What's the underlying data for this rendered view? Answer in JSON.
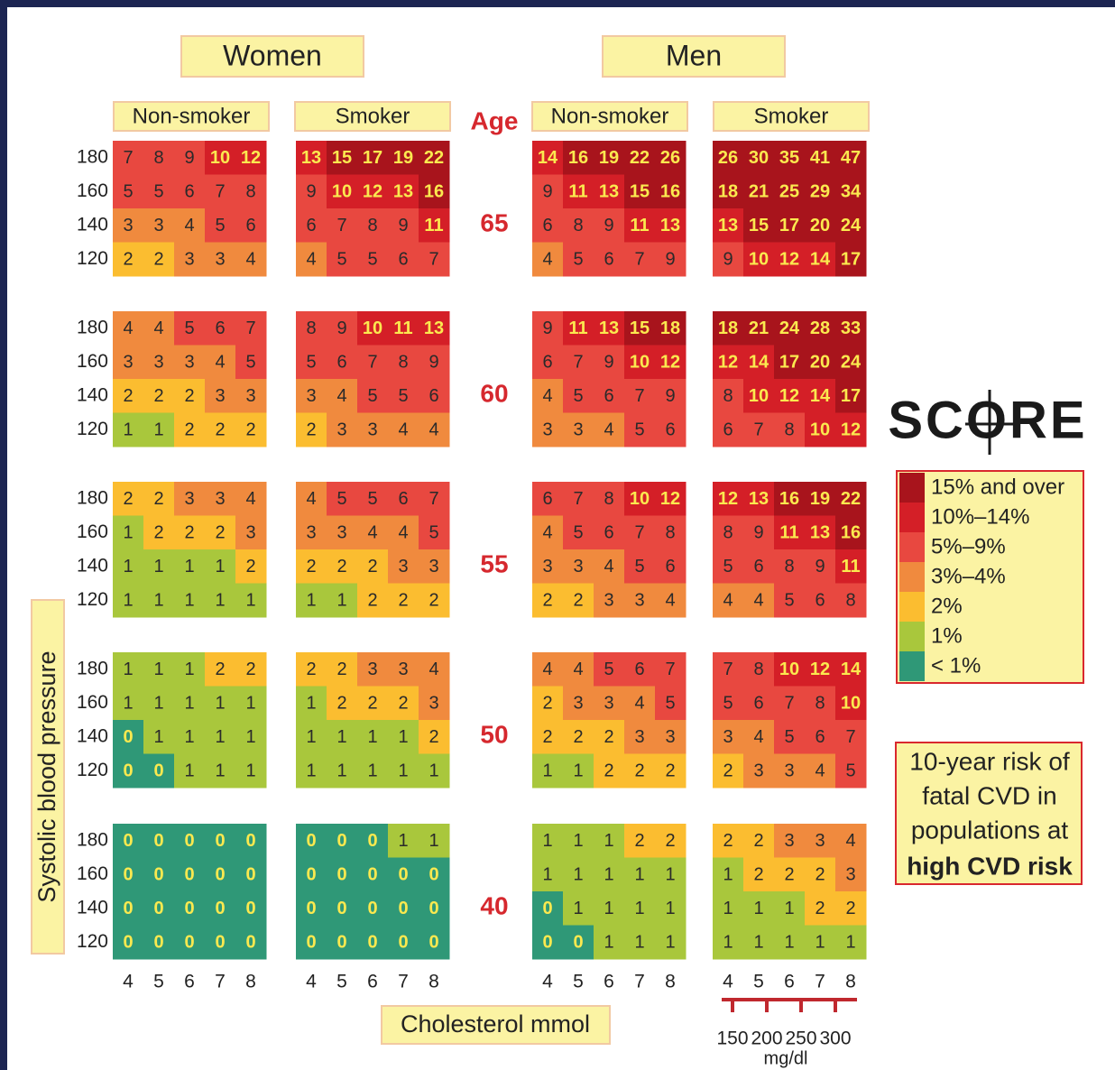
{
  "header": {
    "women": "Women",
    "men": "Men",
    "age_label": "Age"
  },
  "panel_headings": [
    "Non-smoker",
    "Smoker",
    "Non-smoker",
    "Smoker"
  ],
  "sbp_levels": [
    180,
    160,
    140,
    120
  ],
  "cholesterol_mmol": [
    4,
    5,
    6,
    7,
    8
  ],
  "y_axis_label": "Systolic blood pressure",
  "x_axis_label": "Cholesterol mmol",
  "mgdl": {
    "ticks": [
      150,
      200,
      250,
      300
    ],
    "unit": "mg/dl"
  },
  "blocks": [
    {
      "age": 65,
      "panels": [
        [
          [
            7,
            8,
            9,
            10,
            12
          ],
          [
            5,
            5,
            6,
            7,
            8
          ],
          [
            3,
            3,
            4,
            5,
            6
          ],
          [
            2,
            2,
            3,
            3,
            4
          ]
        ],
        [
          [
            13,
            15,
            17,
            19,
            22
          ],
          [
            9,
            10,
            12,
            13,
            16
          ],
          [
            6,
            7,
            8,
            9,
            11
          ],
          [
            4,
            5,
            5,
            6,
            7
          ]
        ],
        [
          [
            14,
            16,
            19,
            22,
            26
          ],
          [
            9,
            11,
            13,
            15,
            16
          ],
          [
            6,
            8,
            9,
            11,
            13
          ],
          [
            4,
            5,
            6,
            7,
            9
          ]
        ],
        [
          [
            26,
            30,
            35,
            41,
            47
          ],
          [
            18,
            21,
            25,
            29,
            34
          ],
          [
            13,
            15,
            17,
            20,
            24
          ],
          [
            9,
            10,
            12,
            14,
            17
          ]
        ]
      ]
    },
    {
      "age": 60,
      "panels": [
        [
          [
            4,
            4,
            5,
            6,
            7
          ],
          [
            3,
            3,
            3,
            4,
            5
          ],
          [
            2,
            2,
            2,
            3,
            3
          ],
          [
            1,
            1,
            2,
            2,
            2
          ]
        ],
        [
          [
            8,
            9,
            10,
            11,
            13
          ],
          [
            5,
            6,
            7,
            8,
            9
          ],
          [
            3,
            4,
            5,
            5,
            6
          ],
          [
            2,
            3,
            3,
            4,
            4
          ]
        ],
        [
          [
            9,
            11,
            13,
            15,
            18
          ],
          [
            6,
            7,
            9,
            10,
            12
          ],
          [
            4,
            5,
            6,
            7,
            9
          ],
          [
            3,
            3,
            4,
            5,
            6
          ]
        ],
        [
          [
            18,
            21,
            24,
            28,
            33
          ],
          [
            12,
            14,
            17,
            20,
            24
          ],
          [
            8,
            10,
            12,
            14,
            17
          ],
          [
            6,
            7,
            8,
            10,
            12
          ]
        ]
      ]
    },
    {
      "age": 55,
      "panels": [
        [
          [
            2,
            2,
            3,
            3,
            4
          ],
          [
            1,
            2,
            2,
            2,
            3
          ],
          [
            1,
            1,
            1,
            1,
            2
          ],
          [
            1,
            1,
            1,
            1,
            1
          ]
        ],
        [
          [
            4,
            5,
            5,
            6,
            7
          ],
          [
            3,
            3,
            4,
            4,
            5
          ],
          [
            2,
            2,
            2,
            3,
            3
          ],
          [
            1,
            1,
            2,
            2,
            2
          ]
        ],
        [
          [
            6,
            7,
            8,
            10,
            12
          ],
          [
            4,
            5,
            6,
            7,
            8
          ],
          [
            3,
            3,
            4,
            5,
            6
          ],
          [
            2,
            2,
            3,
            3,
            4
          ]
        ],
        [
          [
            12,
            13,
            16,
            19,
            22
          ],
          [
            8,
            9,
            11,
            13,
            16
          ],
          [
            5,
            6,
            8,
            9,
            11
          ],
          [
            4,
            4,
            5,
            6,
            8
          ]
        ]
      ]
    },
    {
      "age": 50,
      "panels": [
        [
          [
            1,
            1,
            1,
            2,
            2
          ],
          [
            1,
            1,
            1,
            1,
            1
          ],
          [
            0,
            1,
            1,
            1,
            1
          ],
          [
            0,
            0,
            1,
            1,
            1
          ]
        ],
        [
          [
            2,
            2,
            3,
            3,
            4
          ],
          [
            1,
            2,
            2,
            2,
            3
          ],
          [
            1,
            1,
            1,
            1,
            2
          ],
          [
            1,
            1,
            1,
            1,
            1
          ]
        ],
        [
          [
            4,
            4,
            5,
            6,
            7
          ],
          [
            2,
            3,
            3,
            4,
            5
          ],
          [
            2,
            2,
            2,
            3,
            3
          ],
          [
            1,
            1,
            2,
            2,
            2
          ]
        ],
        [
          [
            7,
            8,
            10,
            12,
            14
          ],
          [
            5,
            6,
            7,
            8,
            10
          ],
          [
            3,
            4,
            5,
            6,
            7
          ],
          [
            2,
            3,
            3,
            4,
            5
          ]
        ]
      ]
    },
    {
      "age": 40,
      "panels": [
        [
          [
            0,
            0,
            0,
            0,
            0
          ],
          [
            0,
            0,
            0,
            0,
            0
          ],
          [
            0,
            0,
            0,
            0,
            0
          ],
          [
            0,
            0,
            0,
            0,
            0
          ]
        ],
        [
          [
            0,
            0,
            0,
            1,
            1
          ],
          [
            0,
            0,
            0,
            0,
            0
          ],
          [
            0,
            0,
            0,
            0,
            0
          ],
          [
            0,
            0,
            0,
            0,
            0
          ]
        ],
        [
          [
            1,
            1,
            1,
            2,
            2
          ],
          [
            1,
            1,
            1,
            1,
            1
          ],
          [
            0,
            1,
            1,
            1,
            1
          ],
          [
            0,
            0,
            1,
            1,
            1
          ]
        ],
        [
          [
            2,
            2,
            3,
            3,
            4
          ],
          [
            1,
            2,
            2,
            2,
            3
          ],
          [
            1,
            1,
            1,
            2,
            2
          ],
          [
            1,
            1,
            1,
            1,
            1
          ]
        ]
      ]
    }
  ],
  "logo": "SCORE",
  "legend": [
    {
      "label": "15% and over",
      "color": "#a8141c"
    },
    {
      "label": "10%–14%",
      "color": "#d41f27"
    },
    {
      "label": "5%–9%",
      "color": "#e84840"
    },
    {
      "label": "3%–4%",
      "color": "#f08a3e"
    },
    {
      "label": "2%",
      "color": "#fbbd30"
    },
    {
      "label": "1%",
      "color": "#a9c73c"
    },
    {
      "label": "< 1%",
      "color": "#2f9877"
    }
  ],
  "note": {
    "lines": [
      "10-year risk of",
      "fatal CVD in",
      "populations at"
    ],
    "bold": "high CVD risk"
  }
}
